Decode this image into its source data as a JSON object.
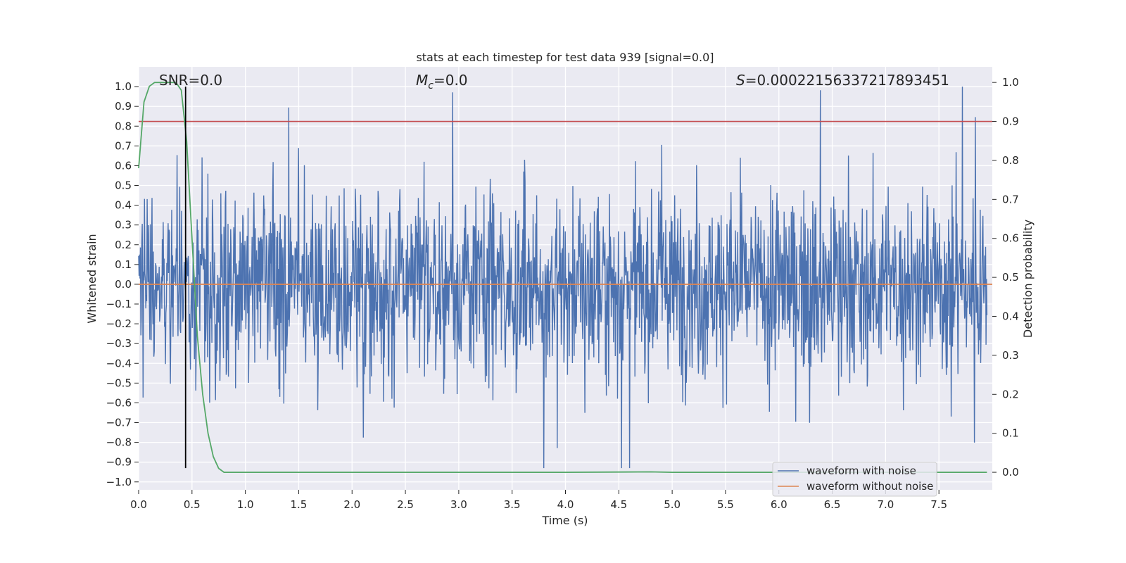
{
  "chart_data": {
    "type": "line",
    "title": "stats at each timestep for test data 939 [signal=0.0]",
    "xlabel": "Time (s)",
    "ylabel": "Whitened strain",
    "y2label": "Detection probability",
    "xlim": [
      0.0,
      8.0
    ],
    "ylim": [
      -1.04,
      1.1
    ],
    "y2lim": [
      -0.045,
      1.04
    ],
    "x_ticks": [
      0.0,
      0.5,
      1.0,
      1.5,
      2.0,
      2.5,
      3.0,
      3.5,
      4.0,
      4.5,
      5.0,
      5.5,
      6.0,
      6.5,
      7.0,
      7.5
    ],
    "x_tick_labels": [
      "0.0",
      "0.5",
      "1.0",
      "1.5",
      "2.0",
      "2.5",
      "3.0",
      "3.5",
      "4.0",
      "4.5",
      "5.0",
      "5.5",
      "6.0",
      "6.5",
      "7.0",
      "7.5"
    ],
    "y_ticks": [
      1.0,
      0.9,
      0.8,
      0.7,
      0.6,
      0.5,
      0.4,
      0.3,
      0.2,
      0.1,
      0.0,
      -0.1,
      -0.2,
      -0.3,
      -0.4,
      -0.5,
      -0.6,
      -0.7,
      -0.8,
      -0.9,
      -1.0
    ],
    "y_tick_labels": [
      "1.0",
      "0.9",
      "0.8",
      "0.7",
      "0.6",
      "0.5",
      "0.4",
      "0.3",
      "0.2",
      "0.1",
      "0.0",
      "−0.1",
      "−0.2",
      "−0.3",
      "−0.4",
      "−0.5",
      "−0.6",
      "−0.7",
      "−0.8",
      "−0.9",
      "−1.0"
    ],
    "y2_ticks": [
      1.0,
      0.9,
      0.8,
      0.7,
      0.6,
      0.5,
      0.4,
      0.3,
      0.2,
      0.1,
      0.0
    ],
    "y2_tick_labels": [
      "1.0",
      "0.9",
      "0.8",
      "0.7",
      "0.6",
      "0.5",
      "0.4",
      "0.3",
      "0.2",
      "0.1",
      "0.0"
    ],
    "grid": true,
    "legend_placement": "lower-right",
    "annotations": {
      "snr": "SNR=0.0",
      "mc_symbol": "M",
      "mc_sub": "c",
      "mc_value": "=0.0",
      "s_symbol": "S",
      "s_value": "=0.00022156337217893451"
    },
    "series": [
      {
        "name": "waveform with noise",
        "axis": "left",
        "color": "#4c72b0",
        "description_values": "dense noise, core band approx -0.35 to 0.4, peaks up to 1.0, troughs down to -0.93"
      },
      {
        "name": "waveform without noise",
        "axis": "left",
        "color": "#dd8452",
        "x": [
          0.0,
          8.0
        ],
        "y": [
          0.0,
          0.0
        ]
      },
      {
        "axis": "right",
        "color": "#55a868",
        "x": [
          0.0,
          0.05,
          0.1,
          0.15,
          0.2,
          0.25,
          0.3,
          0.35,
          0.4,
          0.45,
          0.5,
          0.55,
          0.6,
          0.65,
          0.7,
          0.75,
          0.8,
          0.9,
          1.0,
          2.0,
          3.0,
          4.0,
          4.8,
          5.0,
          6.0,
          7.0,
          7.95
        ],
        "y": [
          0.78,
          0.95,
          0.99,
          1.0,
          1.0,
          1.0,
          1.0,
          1.0,
          0.98,
          0.85,
          0.6,
          0.35,
          0.2,
          0.1,
          0.04,
          0.01,
          0.0,
          0.0,
          0.0,
          0.0,
          0.0,
          0.0,
          0.001,
          0.0,
          0.0,
          0.0,
          0.0
        ]
      }
    ],
    "threshold_line": {
      "axis": "right",
      "value": 0.9,
      "color": "#c44e52"
    },
    "marker_line": {
      "x": 0.44,
      "y_top": 1.0,
      "y_bottom": -0.93,
      "color": "#000000"
    }
  }
}
